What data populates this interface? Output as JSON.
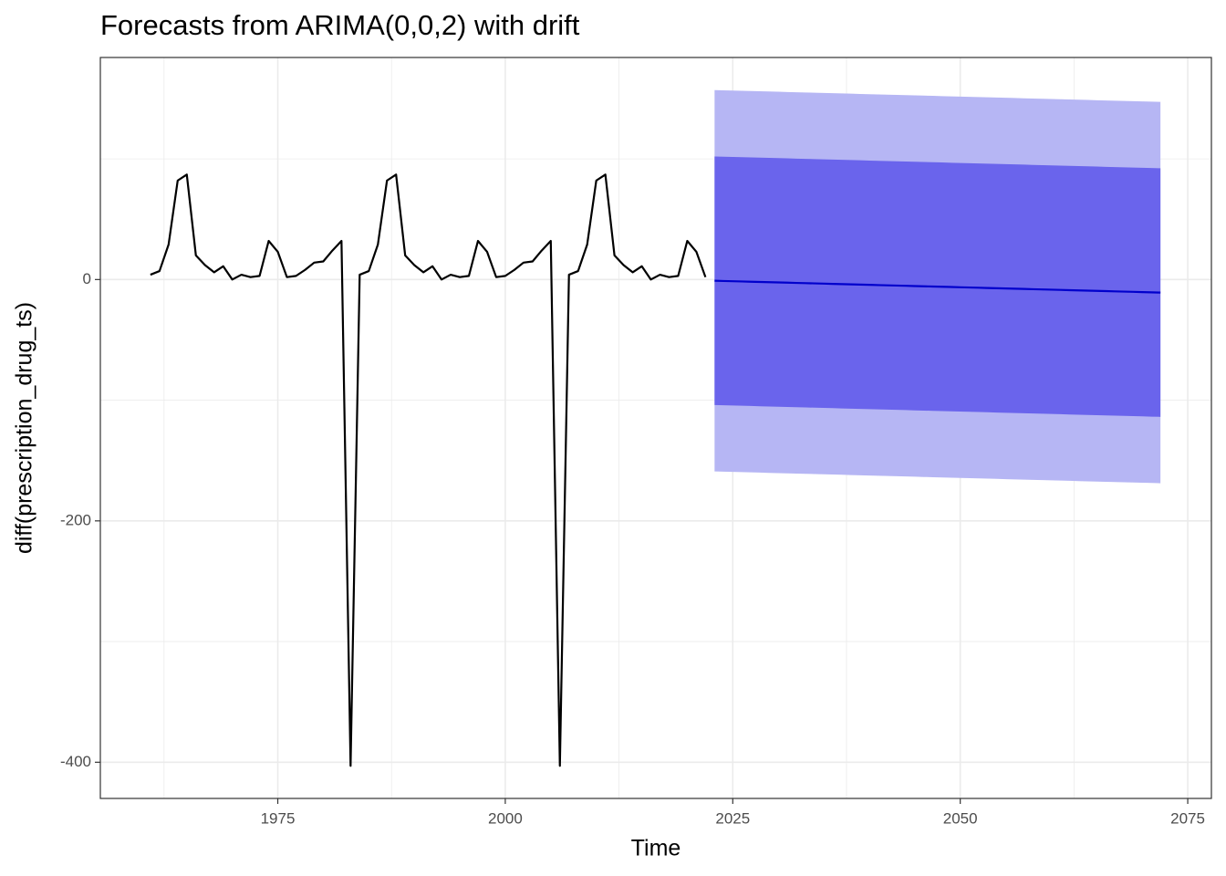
{
  "chart_data": {
    "type": "line",
    "title": "Forecasts from ARIMA(0,0,2) with drift",
    "x_label": "Time",
    "y_label": "diff(prescription_drug_ts)",
    "xlim": [
      1955.5,
      2077.6
    ],
    "ylim": [
      -430,
      184
    ],
    "xticks": [
      1975,
      2000,
      2025,
      2050,
      2075
    ],
    "yticks": [
      -400,
      -200,
      0
    ],
    "x_minor_ticks": [
      1962.5,
      1987.5,
      2012.5,
      2037.5,
      2062.5
    ],
    "y_minor_ticks": [
      -300,
      -100,
      100
    ],
    "grid": true,
    "series": [
      {
        "color": "#000000",
        "x": [
          1961,
          1962,
          1963,
          1964,
          1965,
          1966,
          1967,
          1968,
          1969,
          1970,
          1971,
          1972,
          1973,
          1974,
          1975,
          1976,
          1977,
          1978,
          1979,
          1980,
          1981,
          1982,
          1983,
          1984,
          1985,
          1986,
          1987,
          1988,
          1989,
          1990,
          1991,
          1992,
          1993,
          1994,
          1995,
          1996,
          1997,
          1998,
          1999,
          2000,
          2001,
          2002,
          2003,
          2004,
          2005,
          2006,
          2007,
          2008,
          2009,
          2010,
          2011,
          2012,
          2013,
          2014,
          2015,
          2016,
          2017,
          2018,
          2019,
          2020,
          2021,
          2022
        ],
        "values": [
          4,
          7,
          29,
          82,
          87,
          20,
          12,
          6,
          11,
          0,
          4,
          2,
          3,
          32,
          23,
          2,
          3,
          8,
          14,
          15,
          24,
          32,
          -403,
          4,
          7,
          29,
          82,
          87,
          20,
          12,
          6,
          11,
          0,
          4,
          2,
          3,
          32,
          23,
          2,
          3,
          8,
          14,
          15,
          24,
          32,
          -403,
          4,
          7,
          29,
          82,
          87,
          20,
          12,
          6,
          11,
          0,
          4,
          2,
          3,
          32,
          23,
          2
        ]
      },
      {
        "color": "#0000cc",
        "x": [
          2023,
          2024,
          2025,
          2026,
          2027,
          2028,
          2029,
          2030,
          2031,
          2032,
          2033,
          2034,
          2035,
          2036,
          2037,
          2038,
          2039,
          2040,
          2041,
          2042,
          2043,
          2044,
          2045,
          2046,
          2047,
          2048,
          2049,
          2050,
          2051,
          2052,
          2053,
          2054,
          2055,
          2056,
          2057,
          2058,
          2059,
          2060,
          2061,
          2062,
          2063,
          2064,
          2065,
          2066,
          2067,
          2068,
          2069,
          2070,
          2071,
          2072
        ],
        "values": [
          -1,
          -1.2,
          -1.4,
          -1.6,
          -1.8,
          -2,
          -2.2,
          -2.4,
          -2.6,
          -2.8,
          -3,
          -3.2,
          -3.4,
          -3.6,
          -3.8,
          -4,
          -4.2,
          -4.4,
          -4.6,
          -4.8,
          -5,
          -5.2,
          -5.4,
          -5.6,
          -5.8,
          -6,
          -6.2,
          -6.4,
          -6.6,
          -6.8,
          -7,
          -7.2,
          -7.4,
          -7.6,
          -7.8,
          -8,
          -8.2,
          -8.4,
          -8.6,
          -8.8,
          -9,
          -9.2,
          -9.4,
          -9.6,
          -9.8,
          -10,
          -10.2,
          -10.4,
          -10.6,
          -10.8
        ]
      }
    ],
    "bands": [
      {
        "color": "#b6b6f4",
        "upper": [
          157,
          156.8,
          156.6,
          156.4,
          156.2,
          156,
          155.8,
          155.6,
          155.4,
          155.2,
          155,
          154.8,
          154.6,
          154.4,
          154.2,
          154,
          153.8,
          153.6,
          153.4,
          153.2,
          153,
          152.8,
          152.6,
          152.4,
          152.2,
          152,
          151.8,
          151.6,
          151.4,
          151.2,
          151,
          150.8,
          150.6,
          150.4,
          150.2,
          150,
          149.8,
          149.6,
          149.4,
          149.2,
          149,
          148.8,
          148.6,
          148.4,
          148.2,
          148,
          147.8,
          147.6,
          147.4,
          147.2
        ],
        "lower": [
          -159,
          -159.2,
          -159.4,
          -159.6,
          -159.8,
          -160,
          -160.2,
          -160.4,
          -160.6,
          -160.8,
          -161,
          -161.2,
          -161.4,
          -161.6,
          -161.8,
          -162,
          -162.2,
          -162.4,
          -162.6,
          -162.8,
          -163,
          -163.2,
          -163.4,
          -163.6,
          -163.8,
          -164,
          -164.2,
          -164.4,
          -164.6,
          -164.8,
          -165,
          -165.2,
          -165.4,
          -165.6,
          -165.8,
          -166,
          -166.2,
          -166.4,
          -166.6,
          -166.8,
          -167,
          -167.2,
          -167.4,
          -167.6,
          -167.8,
          -168,
          -168.2,
          -168.4,
          -168.6,
          -168.8
        ]
      },
      {
        "color": "#6a64ec",
        "upper": [
          102,
          101.8,
          101.6,
          101.4,
          101.2,
          101,
          100.8,
          100.6,
          100.4,
          100.2,
          100,
          99.8,
          99.6,
          99.4,
          99.2,
          99,
          98.8,
          98.6,
          98.4,
          98.2,
          98,
          97.8,
          97.6,
          97.4,
          97.2,
          97,
          96.8,
          96.6,
          96.4,
          96.2,
          96,
          95.8,
          95.6,
          95.4,
          95.2,
          95,
          94.8,
          94.6,
          94.4,
          94.2,
          94,
          93.8,
          93.6,
          93.4,
          93.2,
          93,
          92.8,
          92.6,
          92.4,
          92.2
        ],
        "lower": [
          -104,
          -104.2,
          -104.4,
          -104.6,
          -104.8,
          -105,
          -105.2,
          -105.4,
          -105.6,
          -105.8,
          -106,
          -106.2,
          -106.4,
          -106.6,
          -106.8,
          -107,
          -107.2,
          -107.4,
          -107.6,
          -107.8,
          -108,
          -108.2,
          -108.4,
          -108.6,
          -108.8,
          -109,
          -109.2,
          -109.4,
          -109.6,
          -109.8,
          -110,
          -110.2,
          -110.4,
          -110.6,
          -110.8,
          -111,
          -111.2,
          -111.4,
          -111.6,
          -111.8,
          -112,
          -112.2,
          -112.4,
          -112.6,
          -112.8,
          -113,
          -113.2,
          -113.4,
          -113.6,
          -113.8
        ]
      }
    ]
  }
}
